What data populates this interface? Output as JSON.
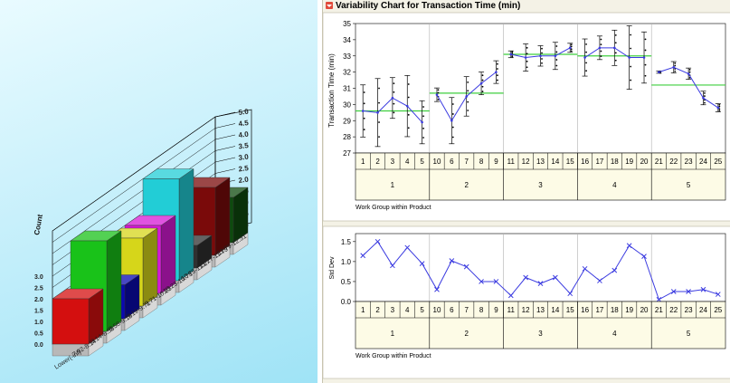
{
  "chart_data": [
    {
      "type": "bar",
      "subtype": "3d-histogram",
      "ylabel": "Count",
      "zlim": [
        0,
        5
      ],
      "ztick_labels": [
        "0.0",
        "0.5",
        "1.0",
        "1.5",
        "2.0",
        "2.5",
        "3.0",
        "3.5",
        "4.0",
        "4.5",
        "5.0"
      ],
      "front_yaxis_labels": [
        "0.0",
        "0.5",
        "1.0",
        "1.5",
        "2.0",
        "2.5",
        "3.0"
      ],
      "first_tick_label": "Lower(-inf)",
      "categories": [
        "7.92-8.14",
        "8.14-8.58",
        "8.58-9.19",
        "9.19-9.71",
        "9.71-10.23",
        "10.23-10.75",
        "10.75-11.27",
        "11.27-11.79",
        "11.79-12.31"
      ],
      "values": [
        2.0,
        4.0,
        1.5,
        3.0,
        3.0,
        4.5,
        1.0,
        3.0,
        2.0
      ],
      "colors": [
        "#d40f0f",
        "#19c219",
        "#0a0ab0",
        "#d6d61a",
        "#d61ad6",
        "#22cdd6",
        "#303030",
        "#7a0a0a",
        "#0e4a0e"
      ]
    },
    {
      "type": "line",
      "title": "Variability Chart for Transaction Time (min)",
      "ylabel": "Transaction Time (min)",
      "xlabel": "Work Group within Product",
      "ylim": [
        27,
        35
      ],
      "yticks": [
        "27",
        "28",
        "29",
        "30",
        "31",
        "32",
        "33",
        "34",
        "35"
      ],
      "work_groups": [
        "1",
        "2",
        "3",
        "4",
        "5",
        "10",
        "6",
        "7",
        "8",
        "9",
        "11",
        "12",
        "13",
        "14",
        "15",
        "16",
        "17",
        "18",
        "19",
        "20",
        "21",
        "22",
        "23",
        "24",
        "25"
      ],
      "products": [
        "1",
        "2",
        "3",
        "4",
        "5"
      ],
      "means": [
        29.6,
        29.5,
        30.4,
        29.9,
        28.9,
        30.6,
        29.0,
        30.5,
        31.3,
        32.0,
        33.1,
        32.9,
        33.0,
        33.0,
        33.5,
        32.9,
        33.5,
        33.5,
        32.9,
        32.9,
        32.0,
        32.3,
        31.9,
        30.4,
        29.8
      ],
      "std_devs": [
        1.15,
        1.5,
        0.9,
        1.35,
        0.95,
        0.3,
        1.02,
        0.87,
        0.5,
        0.5,
        0.15,
        0.6,
        0.45,
        0.6,
        0.2,
        0.82,
        0.52,
        0.78,
        1.4,
        1.13,
        0.05,
        0.25,
        0.25,
        0.3,
        0.18
      ],
      "product_means": [
        29.6,
        30.7,
        33.1,
        33.0,
        31.2
      ]
    },
    {
      "type": "line",
      "ylabel": "Std Dev",
      "xlabel": "Work Group within Product",
      "ylim": [
        0,
        1.7
      ],
      "yticks": [
        "0.0",
        "0.5",
        "1.0",
        "1.5"
      ]
    }
  ]
}
